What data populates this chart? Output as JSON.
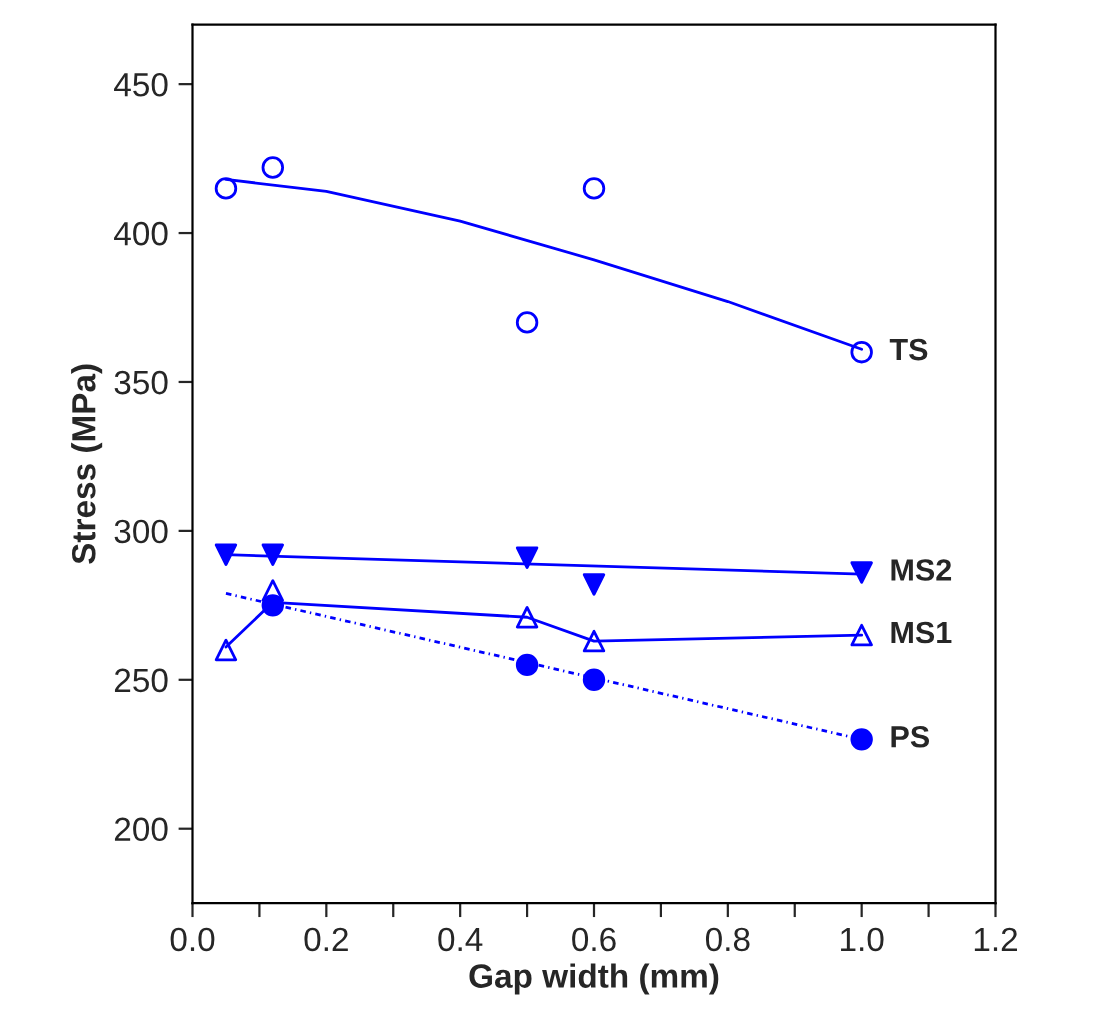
{
  "chart_data": {
    "type": "scatter",
    "xlabel": "Gap width (mm)",
    "ylabel": "Stress (MPa)",
    "xlim": [
      0,
      1.2
    ],
    "xticks": [
      {
        "value": 0,
        "label": "0.0"
      },
      {
        "value": 0.1,
        "label": null
      },
      {
        "value": 0.2,
        "label": "0.2"
      },
      {
        "value": 0.3,
        "label": null
      },
      {
        "value": 0.4,
        "label": "0.4"
      },
      {
        "value": 0.5,
        "label": null
      },
      {
        "value": 0.6,
        "label": "0.6"
      },
      {
        "value": 0.7,
        "label": null
      },
      {
        "value": 0.8,
        "label": "0.8"
      },
      {
        "value": 0.9,
        "label": null
      },
      {
        "value": 1.0,
        "label": "1.0"
      },
      {
        "value": 1.1,
        "label": null
      },
      {
        "value": 1.2,
        "label": "1.2"
      }
    ],
    "ylim": [
      175,
      470
    ],
    "yticks": [
      200,
      250,
      300,
      350,
      400,
      450
    ],
    "grid": false,
    "legend": false,
    "series": [
      {
        "name": "TS",
        "color": "#0000ff",
        "marker": "circle-open",
        "x": [
          0.05,
          0.12,
          0.5,
          0.6,
          1.0
        ],
        "values": [
          415,
          422,
          370,
          415,
          360
        ]
      },
      {
        "type": "line",
        "color": "#0000ff",
        "marker": "none",
        "line_style": "solid",
        "x": [
          0.05,
          0.2,
          0.4,
          0.6,
          0.8,
          1.0
        ],
        "values": [
          418,
          414,
          404,
          391,
          377,
          361
        ]
      },
      {
        "name": "MS2",
        "color": "#0000ff",
        "marker": "triangle-down",
        "x": [
          0.05,
          0.12,
          0.5,
          0.6,
          1.0
        ],
        "values": [
          292,
          292,
          291,
          282,
          286
        ]
      },
      {
        "type": "line",
        "color": "#0000ff",
        "marker": "none",
        "line_style": "solid",
        "x": [
          0.05,
          1.0
        ],
        "values": [
          292,
          285.5
        ]
      },
      {
        "name": "MS1",
        "color": "#0000ff",
        "marker": "triangle-open",
        "x": [
          0.05,
          0.12,
          0.5,
          0.6,
          1.0
        ],
        "values": [
          260,
          280,
          271,
          263,
          265
        ]
      },
      {
        "type": "line",
        "color": "#0000ff",
        "marker": "none",
        "line_style": "solid",
        "x": [
          0.05,
          0.12,
          0.5,
          0.6,
          1.0
        ],
        "values": [
          261,
          276,
          271,
          263,
          265
        ]
      },
      {
        "name": "PS",
        "color": "#0000ff",
        "marker": "circle",
        "x": [
          0.12,
          0.5,
          0.6,
          1.0
        ],
        "values": [
          275,
          255,
          250,
          230
        ]
      },
      {
        "type": "line",
        "color": "#0000ff",
        "marker": "none",
        "line_style": "dotted",
        "x": [
          0.05,
          1.0
        ],
        "values": [
          279,
          230
        ]
      }
    ]
  }
}
